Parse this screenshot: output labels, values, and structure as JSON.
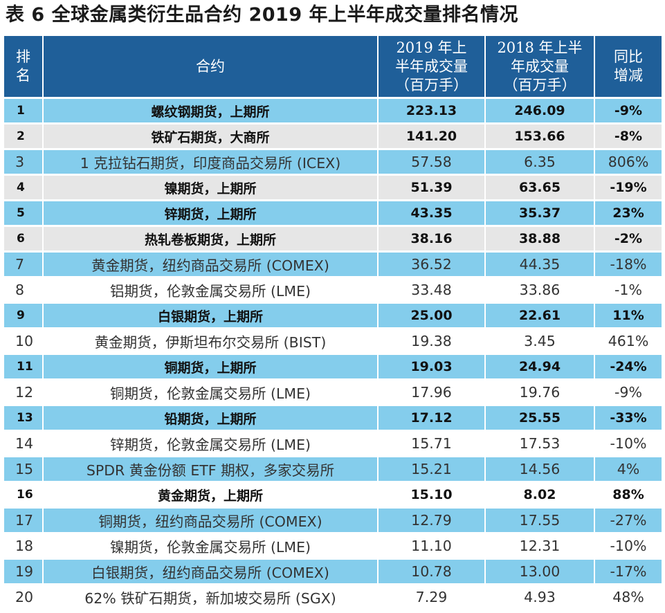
{
  "title": "表 6  全球金属类衍生品合约 2019 年上半年成交量排名情况",
  "headers": {
    "rank": "排\n名",
    "contract": "合约",
    "vol_2019": "2019 年上\n半年成交量\n（百万手）",
    "vol_2018": "2018 年上半\n年成交量\n（百万手）",
    "change": "同比\n增减"
  },
  "colors": {
    "header_bg": "#1f5f99",
    "row_blue": "#84cdec",
    "row_gray": "#e6e6e6",
    "row_white": "#ffffff"
  },
  "rows": [
    {
      "rank": "1",
      "contract": "螺纹钢期货，上期所",
      "vol_2019": "223.13",
      "vol_2018": "246.09",
      "change": "-9%",
      "style": "blue",
      "bold": true
    },
    {
      "rank": "2",
      "contract": "铁矿石期货，大商所",
      "vol_2019": "141.20",
      "vol_2018": "153.66",
      "change": "-8%",
      "style": "gray",
      "bold": true
    },
    {
      "rank": "3",
      "contract": "1 克拉钻石期货，印度商品交易所 (ICEX)",
      "vol_2019": "57.58",
      "vol_2018": "6.35",
      "change": "806%",
      "style": "blue",
      "bold": false
    },
    {
      "rank": "4",
      "contract": "镍期货，上期所",
      "vol_2019": "51.39",
      "vol_2018": "63.65",
      "change": "-19%",
      "style": "gray",
      "bold": true
    },
    {
      "rank": "5",
      "contract": "锌期货，上期所",
      "vol_2019": "43.35",
      "vol_2018": "35.37",
      "change": "23%",
      "style": "blue",
      "bold": true
    },
    {
      "rank": "6",
      "contract": "热轧卷板期货，上期所",
      "vol_2019": "38.16",
      "vol_2018": "38.88",
      "change": "-2%",
      "style": "gray",
      "bold": true
    },
    {
      "rank": "7",
      "contract": "黄金期货，纽约商品交易所 (COMEX)",
      "vol_2019": "36.52",
      "vol_2018": "44.35",
      "change": "-18%",
      "style": "blue",
      "bold": false
    },
    {
      "rank": "8",
      "contract": "铝期货，伦敦金属交易所 (LME)",
      "vol_2019": "33.48",
      "vol_2018": "33.86",
      "change": "-1%",
      "style": "white",
      "bold": false
    },
    {
      "rank": "9",
      "contract": "白银期货，上期所",
      "vol_2019": "25.00",
      "vol_2018": "22.61",
      "change": "11%",
      "style": "blue",
      "bold": true
    },
    {
      "rank": "10",
      "contract": "黄金期货，伊斯坦布尔交易所 (BIST)",
      "vol_2019": "19.38",
      "vol_2018": "3.45",
      "change": "461%",
      "style": "white",
      "bold": false
    },
    {
      "rank": "11",
      "contract": "铜期货，上期所",
      "vol_2019": "19.03",
      "vol_2018": "24.94",
      "change": "-24%",
      "style": "blue",
      "bold": true
    },
    {
      "rank": "12",
      "contract": "铜期货，伦敦金属交易所 (LME)",
      "vol_2019": "17.96",
      "vol_2018": "19.76",
      "change": "-9%",
      "style": "white",
      "bold": false
    },
    {
      "rank": "13",
      "contract": "铅期货，上期所",
      "vol_2019": "17.12",
      "vol_2018": "25.55",
      "change": "-33%",
      "style": "blue",
      "bold": true
    },
    {
      "rank": "14",
      "contract": "锌期货，伦敦金属交易所 (LME)",
      "vol_2019": "15.71",
      "vol_2018": "17.53",
      "change": "-10%",
      "style": "white",
      "bold": false
    },
    {
      "rank": "15",
      "contract": "SPDR 黄金份额 ETF 期权，多家交易所",
      "vol_2019": "15.21",
      "vol_2018": "14.56",
      "change": "4%",
      "style": "blue",
      "bold": false
    },
    {
      "rank": "16",
      "contract": "黄金期货，上期所",
      "vol_2019": "15.10",
      "vol_2018": "8.02",
      "change": "88%",
      "style": "white",
      "bold": true
    },
    {
      "rank": "17",
      "contract": "铜期货，纽约商品交易所 (COMEX)",
      "vol_2019": "12.79",
      "vol_2018": "17.55",
      "change": "-27%",
      "style": "blue",
      "bold": false
    },
    {
      "rank": "18",
      "contract": "镍期货，伦敦金属交易所 (LME)",
      "vol_2019": "11.10",
      "vol_2018": "12.31",
      "change": "-10%",
      "style": "white",
      "bold": false
    },
    {
      "rank": "19",
      "contract": "白银期货，纽约商品交易所 (COMEX)",
      "vol_2019": "10.78",
      "vol_2018": "13.00",
      "change": "-17%",
      "style": "blue",
      "bold": false
    },
    {
      "rank": "20",
      "contract": "62% 铁矿石期货，新加坡交易所 (SGX)",
      "vol_2019": "7.29",
      "vol_2018": "4.93",
      "change": "48%",
      "style": "white",
      "bold": false
    }
  ]
}
